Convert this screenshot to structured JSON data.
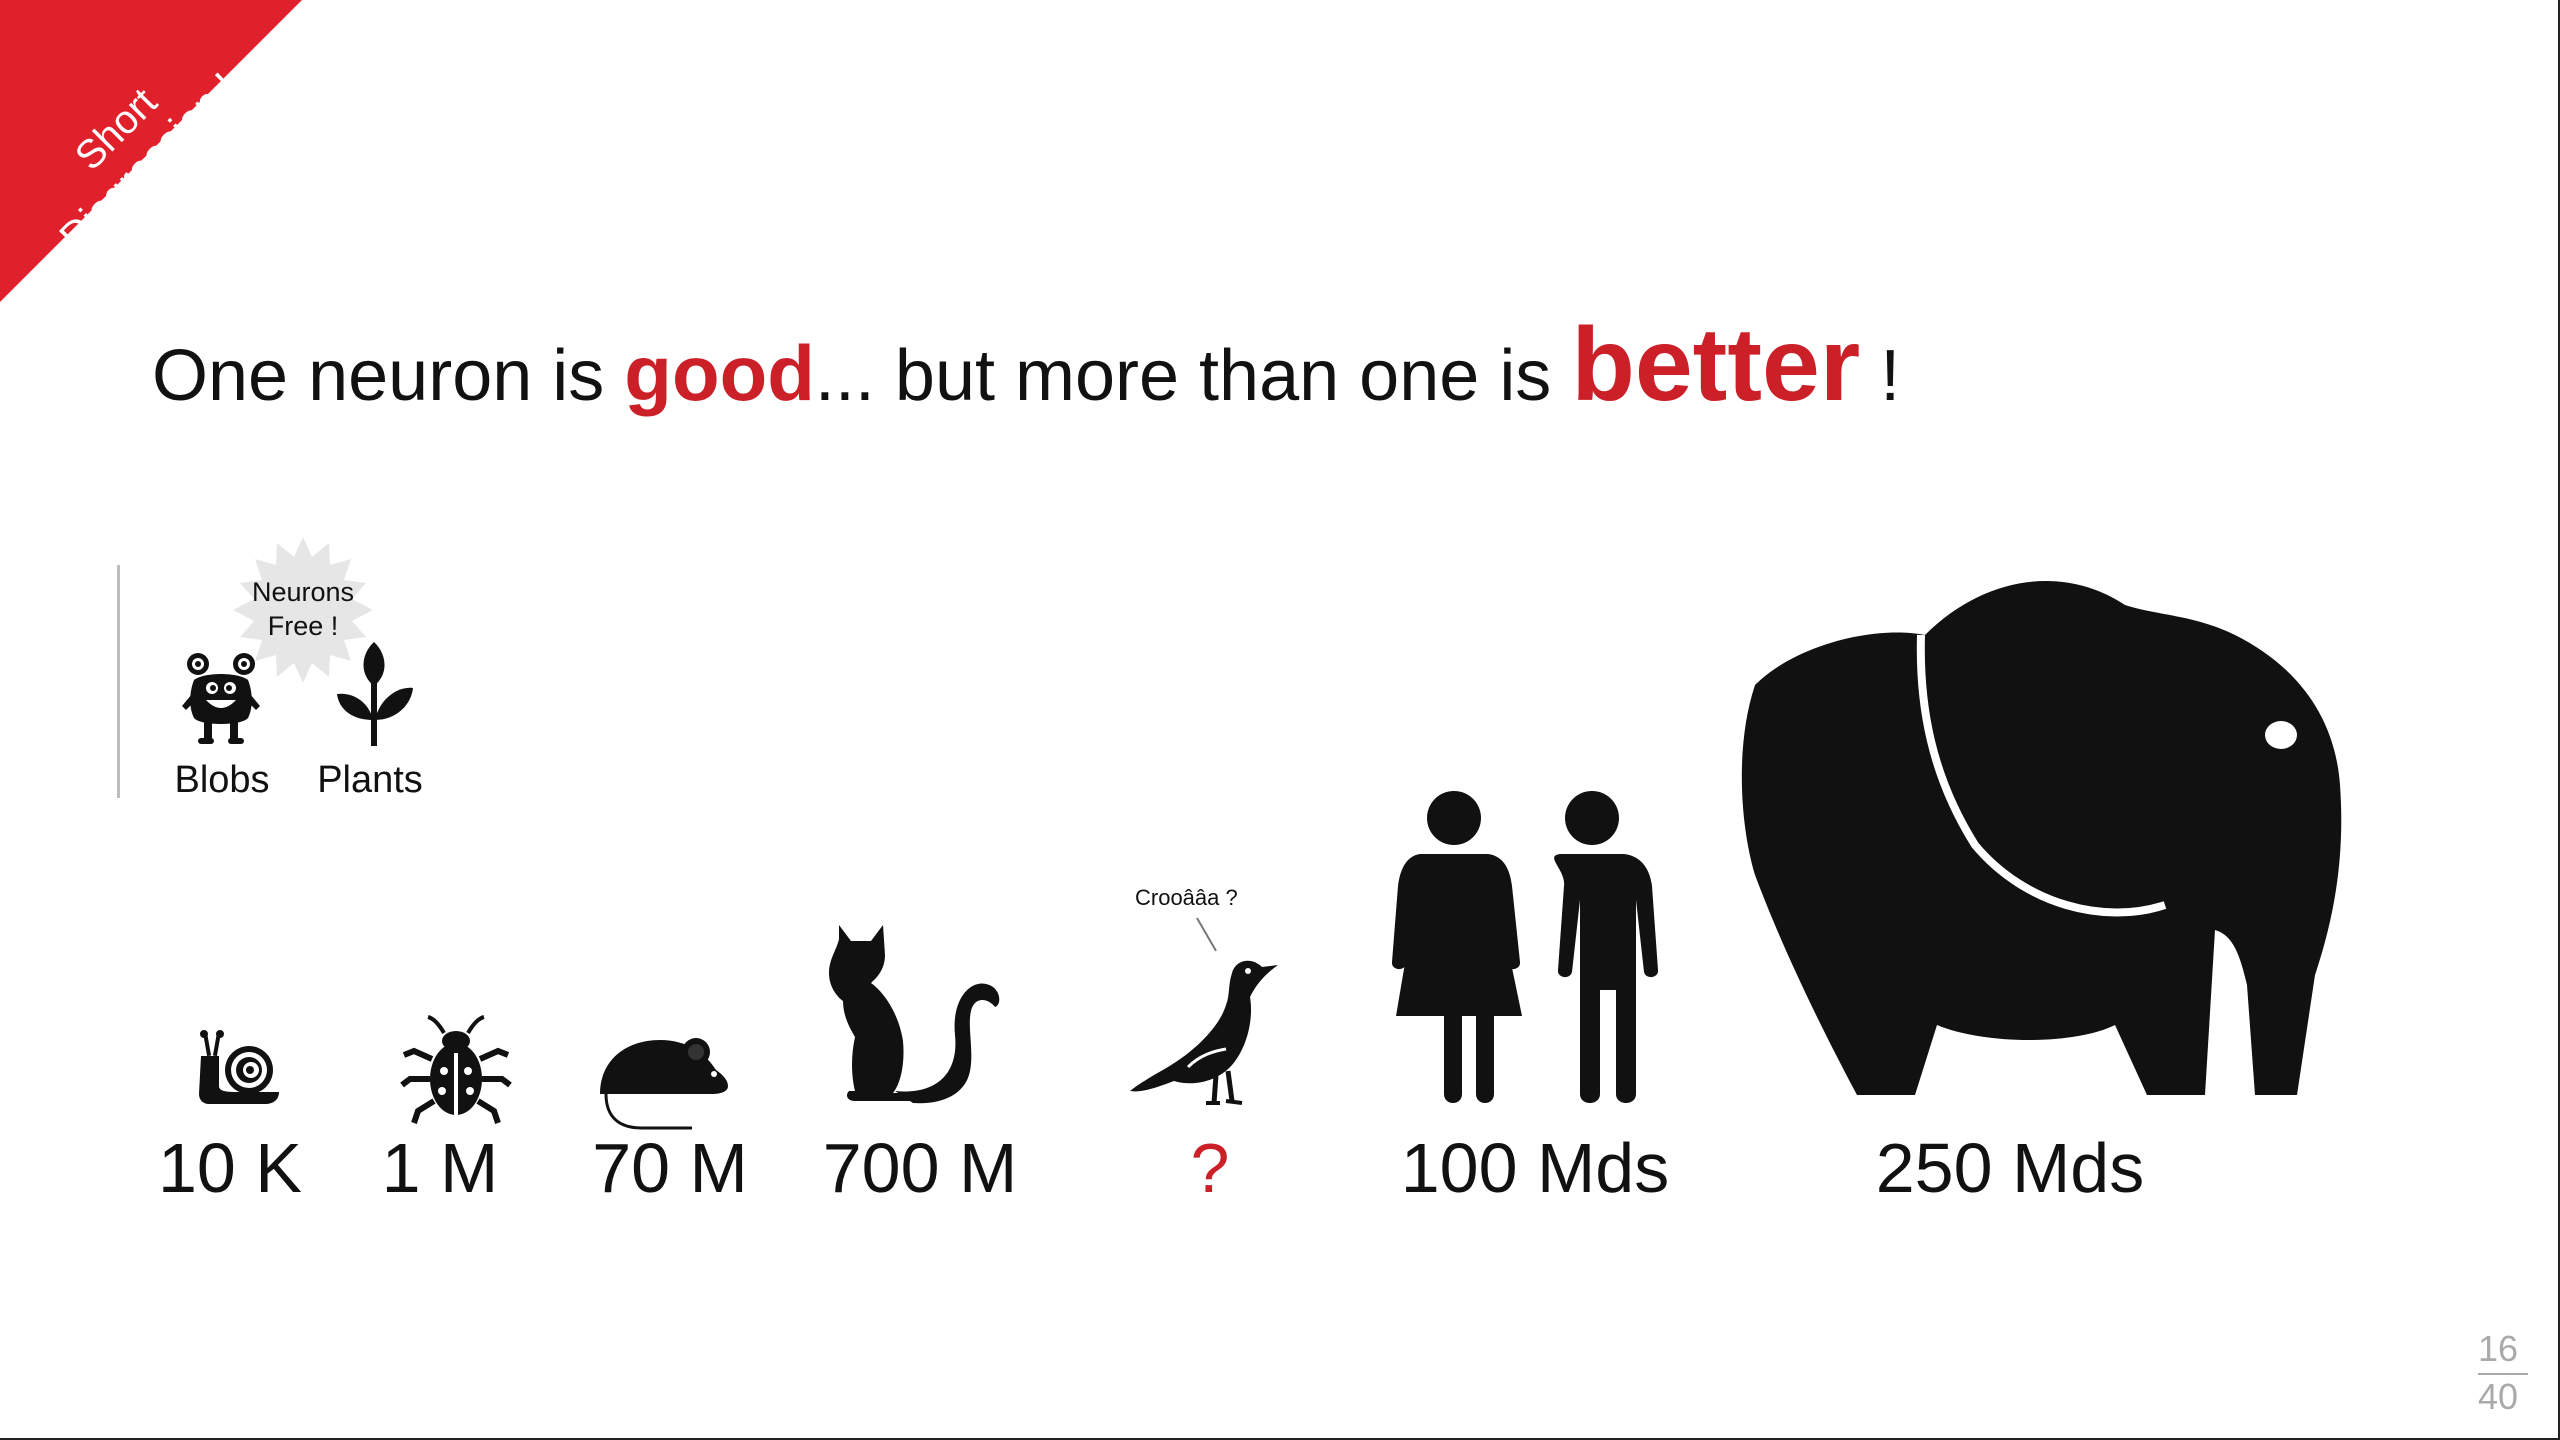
{
  "corner_ribbon": {
    "text": "Short\nDisgression !",
    "line1": "Short",
    "line2": "Disgression !",
    "color": "#e0202b"
  },
  "title": {
    "part1": "One neuron is ",
    "good": "good",
    "part2": "... but more than one is ",
    "better": "better",
    "part3": " !",
    "accent_color": "#cc2029"
  },
  "no_neuron_group": {
    "badge": {
      "line1": "Neurons",
      "line2": "Free !"
    },
    "items": [
      {
        "label": "Blobs",
        "icon": "blob-monster-icon"
      },
      {
        "label": "Plants",
        "icon": "sprout-icon"
      }
    ]
  },
  "speech_bubble": "Crooââa ?",
  "animals": [
    {
      "label": "10 K",
      "icon": "snail-icon"
    },
    {
      "label": "1 M",
      "icon": "bug-icon"
    },
    {
      "label": "70 M",
      "icon": "mouse-icon"
    },
    {
      "label": "700 M",
      "icon": "cat-icon"
    },
    {
      "label": "?",
      "icon": "bird-icon",
      "highlight": true
    },
    {
      "label": "100 Mds",
      "icon": "people-icon"
    },
    {
      "label": "250 Mds",
      "icon": "elephant-icon"
    }
  ],
  "page": {
    "current": "16",
    "total": "40"
  }
}
